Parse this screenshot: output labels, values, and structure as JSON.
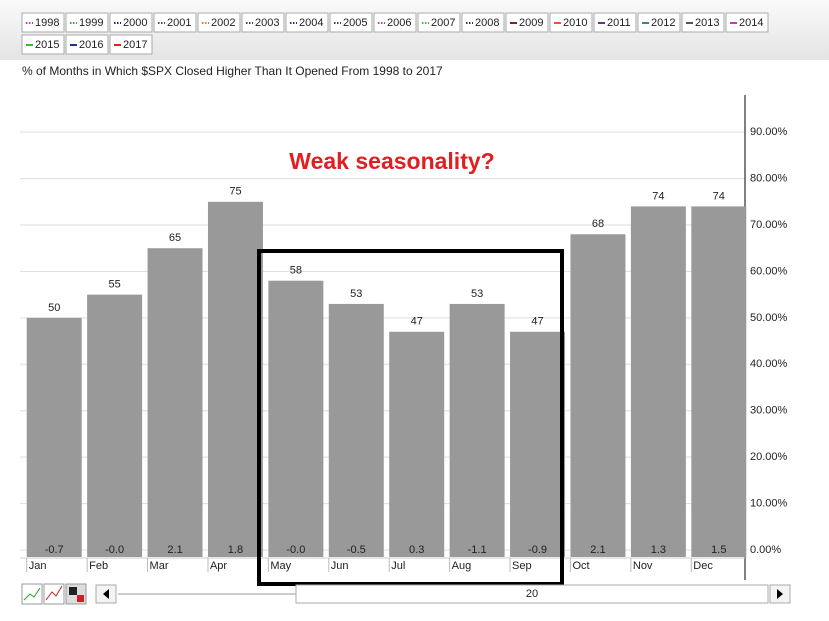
{
  "chart_data": {
    "type": "bar",
    "title": "% of Months in Which $SPX Closed Higher Than It Opened From 1998 to 2017",
    "annotation": "Weak seasonality?",
    "legend": [
      {
        "name": "1998",
        "color": "#cc33cc",
        "dash": true
      },
      {
        "name": "1999",
        "color": "#33aa33",
        "dash": true
      },
      {
        "name": "2000",
        "color": "#222266",
        "dash": true
      },
      {
        "name": "2001",
        "color": "#883333",
        "dash": true
      },
      {
        "name": "2002",
        "color": "#dd7722",
        "dash": true
      },
      {
        "name": "2003",
        "color": "#553366",
        "dash": true
      },
      {
        "name": "2004",
        "color": "#333377",
        "dash": true
      },
      {
        "name": "2005",
        "color": "#444444",
        "dash": true
      },
      {
        "name": "2006",
        "color": "#aa44aa",
        "dash": true
      },
      {
        "name": "2007",
        "color": "#44bb44",
        "dash": true
      },
      {
        "name": "2008",
        "color": "#223377",
        "dash": true
      },
      {
        "name": "2009",
        "color": "#882222",
        "dash": false
      },
      {
        "name": "2010",
        "color": "#ee5522",
        "dash": false
      },
      {
        "name": "2011",
        "color": "#663388",
        "dash": false
      },
      {
        "name": "2012",
        "color": "#338888",
        "dash": false
      },
      {
        "name": "2013",
        "color": "#555555",
        "dash": false
      },
      {
        "name": "2014",
        "color": "#cc33cc",
        "dash": false
      },
      {
        "name": "2015",
        "color": "#33bb33",
        "dash": false
      },
      {
        "name": "2016",
        "color": "#223388",
        "dash": false
      },
      {
        "name": "2017",
        "color": "#dd2222",
        "dash": false
      }
    ],
    "categories": [
      "Jan",
      "Feb",
      "Mar",
      "Apr",
      "May",
      "Jun",
      "Jul",
      "Aug",
      "Sep",
      "Oct",
      "Nov",
      "Dec"
    ],
    "values": [
      50,
      55,
      65,
      75,
      58,
      53,
      47,
      53,
      47,
      68,
      74,
      74
    ],
    "color": "#999999",
    "changes": {
      "values": [
        -0.7,
        0,
        2.1,
        1.8,
        0,
        -0.5,
        0.3,
        -1.1,
        -0.9,
        2.1,
        1.3,
        1.5
      ],
      "value_labels": [
        "-0.7",
        "-0.0",
        "2.1",
        "1.8",
        "-0.0",
        "-0.5",
        "0.3",
        "-1.1",
        "-0.9",
        "2.1",
        "1.3",
        "1.5"
      ]
    },
    "ylim": [
      0,
      98
    ],
    "yticks": [
      {
        "value": 0,
        "label": "0.00%"
      },
      {
        "value": 10,
        "label": "10.00%"
      },
      {
        "value": 20,
        "label": "20.00%"
      },
      {
        "value": 30,
        "label": "30.00%"
      },
      {
        "value": 40,
        "label": "40.00%"
      },
      {
        "value": 50,
        "label": "50.00%"
      },
      {
        "value": 60,
        "label": "60.00%"
      },
      {
        "value": 70,
        "label": "70.00%"
      },
      {
        "value": 80,
        "label": "80.00%"
      },
      {
        "value": 90,
        "label": "90.00%"
      }
    ],
    "grid": true,
    "scrollbar_value": 20
  }
}
